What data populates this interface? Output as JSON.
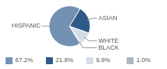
{
  "chart_data": {
    "type": "pie",
    "categories": [
      "HISPANIC",
      "ASIAN",
      "WHITE",
      "BLACK"
    ],
    "values": [
      67.2,
      21.8,
      9.9,
      1.0
    ],
    "value_labels": [
      "67.2%",
      "21.8%",
      "9.9%",
      "1.0%"
    ],
    "colors": [
      "#7391b3",
      "#2f5a88",
      "#d3dce7",
      "#a9b7c8"
    ],
    "legend": "bottom"
  }
}
